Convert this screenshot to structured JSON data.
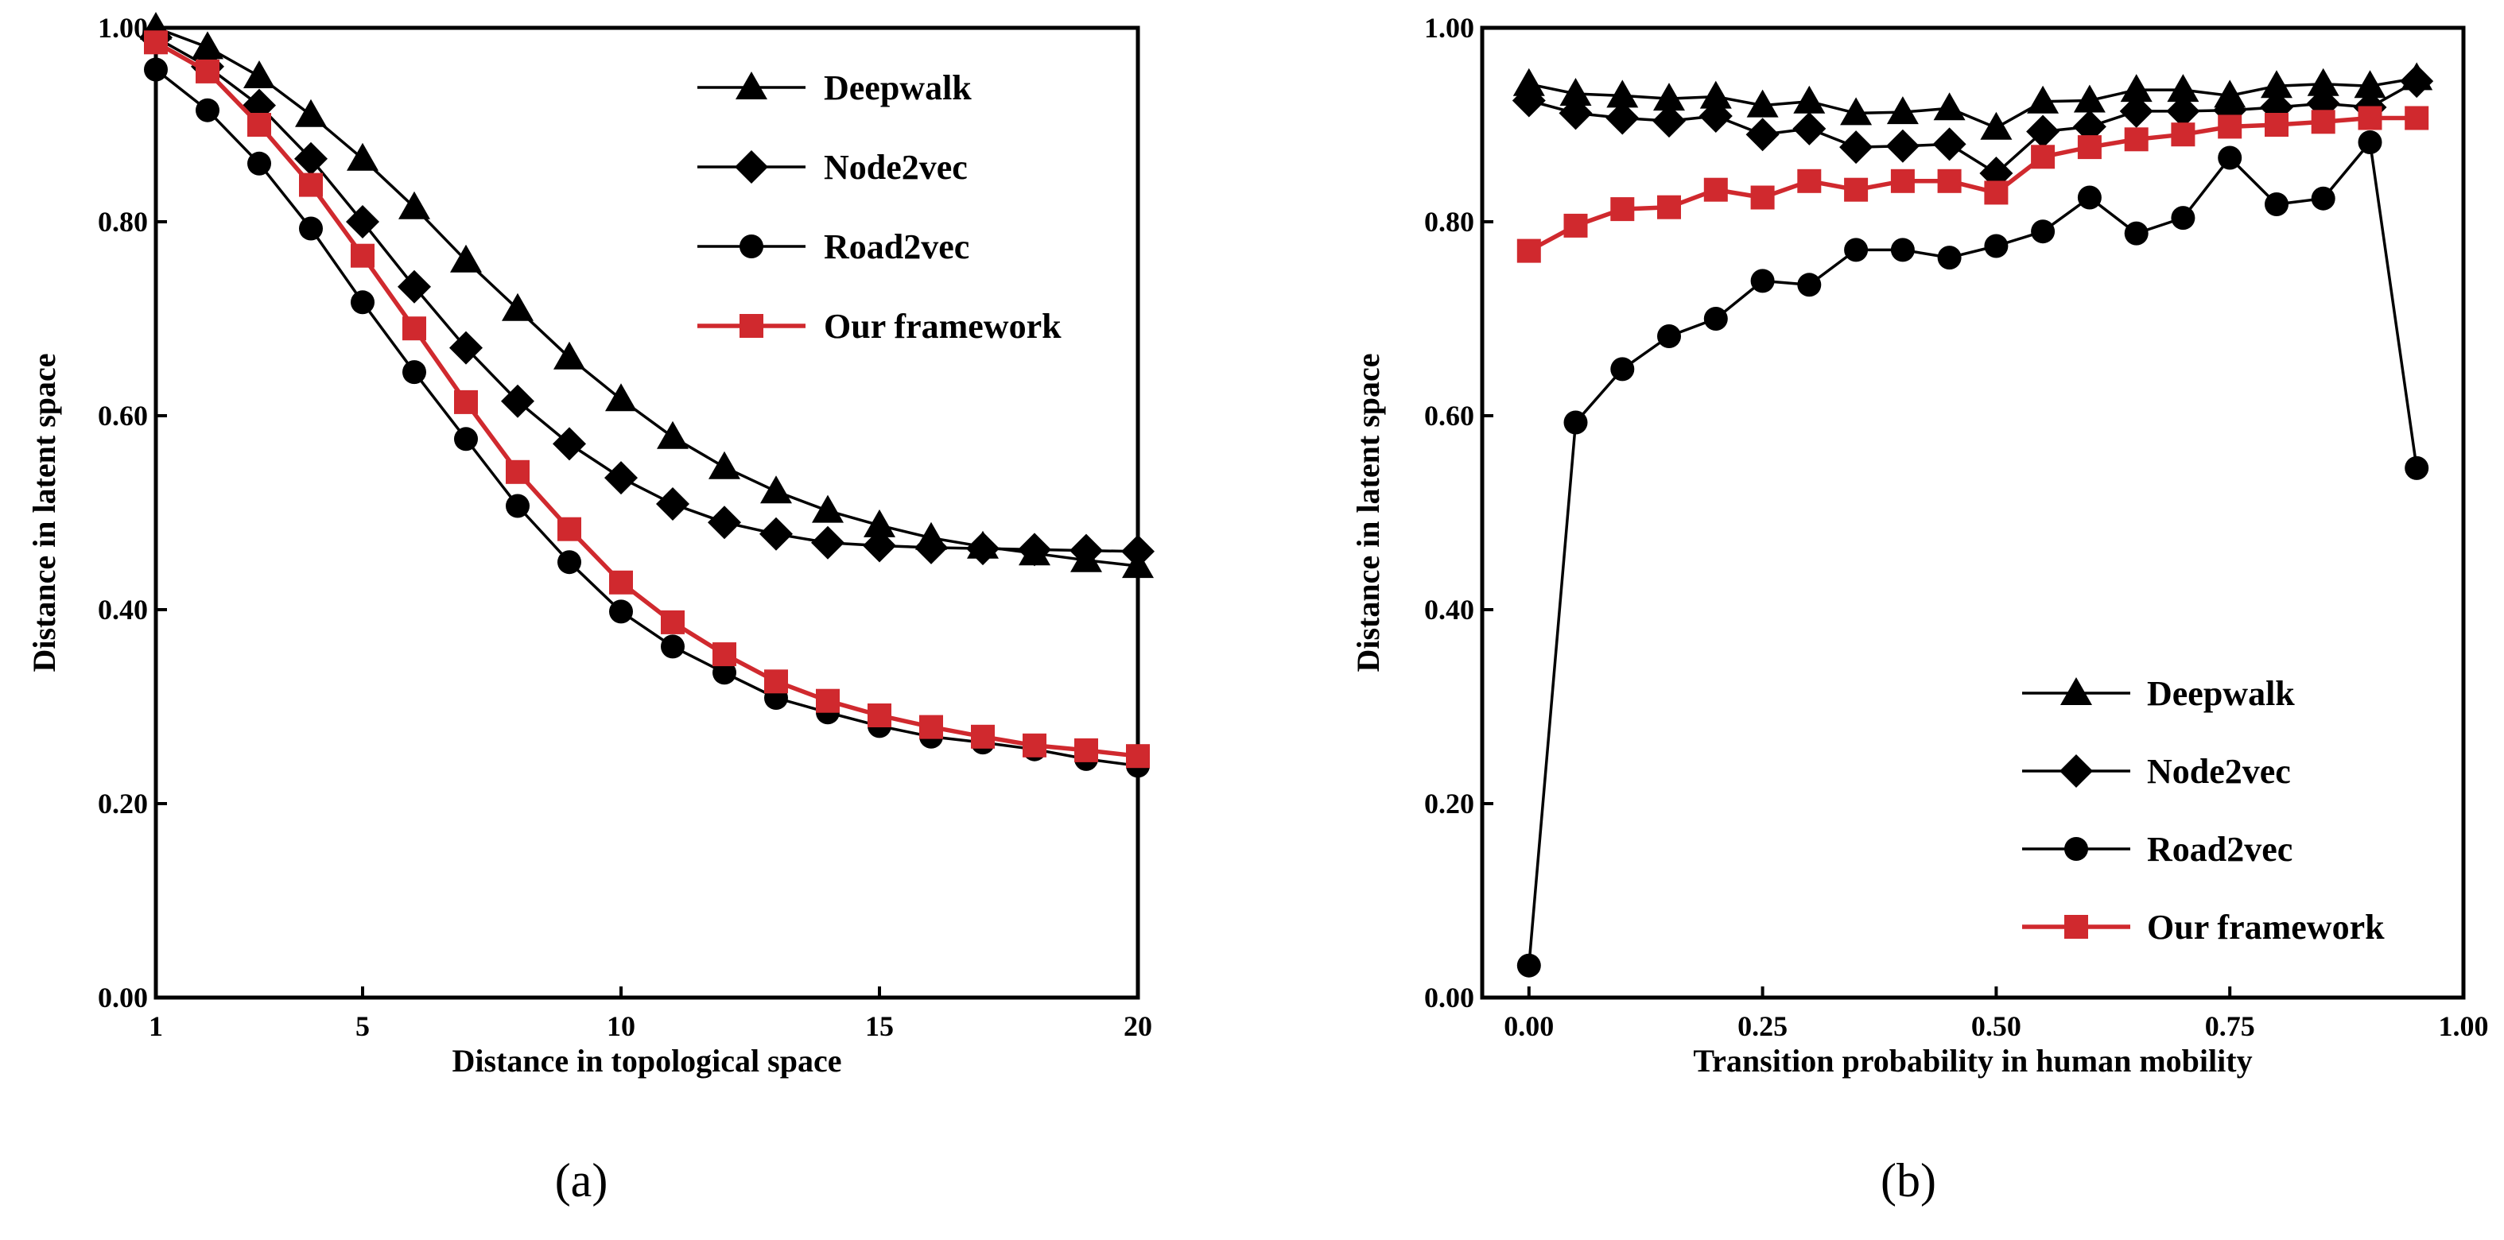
{
  "chart_data": [
    {
      "type": "line",
      "xlabel": "Distance in topological space",
      "ylabel": "Distance in latent space",
      "xlim": [
        1,
        20
      ],
      "ylim": [
        0.0,
        1.0
      ],
      "xticks": [
        1,
        5,
        10,
        15,
        20
      ],
      "xtick_labels": [
        "1",
        "5",
        "10",
        "15",
        "20"
      ],
      "yticks": [
        0.0,
        0.2,
        0.4,
        0.6,
        0.8,
        1.0
      ],
      "ytick_labels": [
        "0.00",
        "0.20",
        "0.40",
        "0.60",
        "0.80",
        "1.00"
      ],
      "legend_position": "top-right",
      "caption": "(a)",
      "x": [
        1,
        2,
        3,
        4,
        5,
        6,
        7,
        8,
        9,
        10,
        11,
        12,
        13,
        14,
        15,
        16,
        17,
        18,
        19,
        20
      ],
      "series": [
        {
          "name": "Deepwalk",
          "marker": "triangle",
          "color": "#000000",
          "values": [
            1.0,
            0.98,
            0.95,
            0.91,
            0.865,
            0.815,
            0.76,
            0.71,
            0.66,
            0.617,
            0.578,
            0.547,
            0.522,
            0.502,
            0.487,
            0.474,
            0.465,
            0.458,
            0.451,
            0.445
          ]
        },
        {
          "name": "Node2vec",
          "marker": "diamond",
          "color": "#000000",
          "values": [
            0.99,
            0.96,
            0.92,
            0.865,
            0.8,
            0.733,
            0.67,
            0.615,
            0.571,
            0.536,
            0.509,
            0.49,
            0.478,
            0.469,
            0.466,
            0.464,
            0.463,
            0.462,
            0.461,
            0.46
          ]
        },
        {
          "name": "Road2vec",
          "marker": "circle",
          "color": "#000000",
          "values": [
            0.957,
            0.915,
            0.86,
            0.793,
            0.717,
            0.645,
            0.576,
            0.507,
            0.449,
            0.398,
            0.362,
            0.335,
            0.309,
            0.294,
            0.28,
            0.269,
            0.263,
            0.256,
            0.246,
            0.239
          ]
        },
        {
          "name": "Our framework",
          "marker": "square",
          "color": "#d0292e",
          "values": [
            0.985,
            0.955,
            0.9,
            0.838,
            0.765,
            0.69,
            0.614,
            0.542,
            0.483,
            0.428,
            0.387,
            0.354,
            0.326,
            0.306,
            0.291,
            0.279,
            0.269,
            0.26,
            0.255,
            0.249
          ]
        }
      ]
    },
    {
      "type": "line",
      "xlabel": "Transition probability in human mobility",
      "ylabel": "Distance in latent space",
      "xlim": [
        -0.05,
        1.0
      ],
      "ylim": [
        0.0,
        1.0
      ],
      "xticks": [
        0.0,
        0.25,
        0.5,
        0.75,
        1.0
      ],
      "xtick_labels": [
        "0.00",
        "0.25",
        "0.50",
        "0.75",
        "1.00"
      ],
      "yticks": [
        0.0,
        0.2,
        0.4,
        0.6,
        0.8,
        1.0
      ],
      "ytick_labels": [
        "0.00",
        "0.20",
        "0.40",
        "0.60",
        "0.80",
        "1.00"
      ],
      "legend_position": "bottom-right",
      "caption": "(b)",
      "x": [
        0.0,
        0.05,
        0.1,
        0.15,
        0.2,
        0.25,
        0.3,
        0.35,
        0.4,
        0.45,
        0.5,
        0.55,
        0.6,
        0.65,
        0.7,
        0.75,
        0.8,
        0.85,
        0.9,
        0.95
      ],
      "series": [
        {
          "name": "Deepwalk",
          "marker": "triangle",
          "color": "#000000",
          "values": [
            0.942,
            0.932,
            0.93,
            0.927,
            0.929,
            0.92,
            0.924,
            0.912,
            0.913,
            0.917,
            0.897,
            0.924,
            0.925,
            0.936,
            0.936,
            0.93,
            0.94,
            0.942,
            0.94,
            0.948
          ]
        },
        {
          "name": "Node2vec",
          "marker": "diamond",
          "color": "#000000",
          "values": [
            0.925,
            0.912,
            0.907,
            0.904,
            0.909,
            0.89,
            0.896,
            0.877,
            0.878,
            0.88,
            0.85,
            0.893,
            0.898,
            0.914,
            0.914,
            0.915,
            0.918,
            0.922,
            0.918,
            0.945
          ]
        },
        {
          "name": "Road2vec",
          "marker": "circle",
          "color": "#000000",
          "values": [
            0.033,
            0.593,
            0.648,
            0.682,
            0.7,
            0.739,
            0.735,
            0.771,
            0.771,
            0.763,
            0.775,
            0.79,
            0.825,
            0.788,
            0.804,
            0.866,
            0.818,
            0.824,
            0.882,
            0.546
          ]
        },
        {
          "name": "Our framework",
          "marker": "square",
          "color": "#d0292e",
          "values": [
            0.77,
            0.796,
            0.813,
            0.815,
            0.833,
            0.825,
            0.842,
            0.833,
            0.842,
            0.842,
            0.83,
            0.867,
            0.877,
            0.885,
            0.89,
            0.898,
            0.9,
            0.903,
            0.907,
            0.907
          ]
        }
      ]
    }
  ]
}
